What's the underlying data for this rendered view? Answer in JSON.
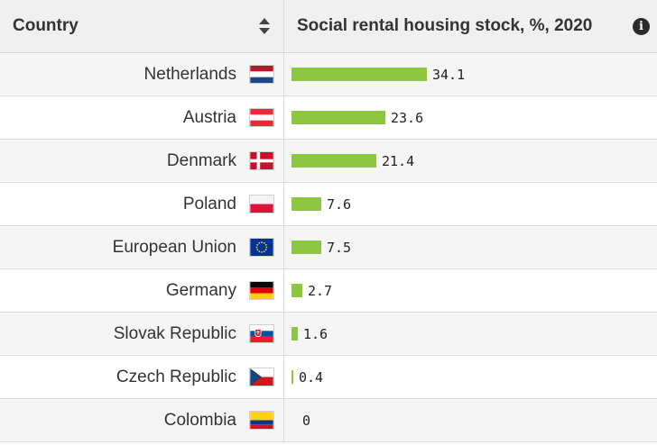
{
  "header": {
    "country_label": "Country",
    "metric_label": "Social rental housing stock, %, 2020",
    "info_glyph": "i"
  },
  "colors": {
    "bar": "#8dc63f"
  },
  "rows": [
    {
      "country": "Netherlands",
      "flag": "netherlands-flag-icon",
      "value": "34.1"
    },
    {
      "country": "Austria",
      "flag": "austria-flag-icon",
      "value": "23.6"
    },
    {
      "country": "Denmark",
      "flag": "denmark-flag-icon",
      "value": "21.4"
    },
    {
      "country": "Poland",
      "flag": "poland-flag-icon",
      "value": "7.6"
    },
    {
      "country": "European Union",
      "flag": "eu-flag-icon",
      "value": "7.5"
    },
    {
      "country": "Germany",
      "flag": "germany-flag-icon",
      "value": "2.7"
    },
    {
      "country": "Slovak Republic",
      "flag": "slovakia-flag-icon",
      "value": "1.6"
    },
    {
      "country": "Czech Republic",
      "flag": "czech-flag-icon",
      "value": "0.4"
    },
    {
      "country": "Colombia",
      "flag": "colombia-flag-icon",
      "value": "0"
    }
  ]
}
